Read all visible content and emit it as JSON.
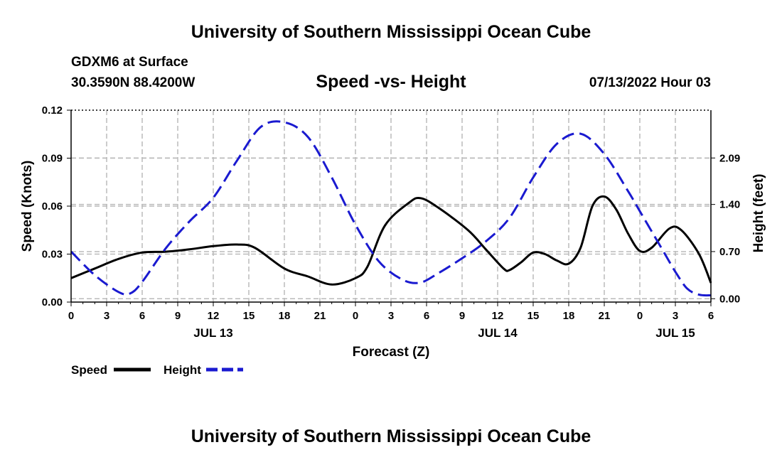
{
  "header": {
    "title": "University of Southern Mississippi Ocean Cube",
    "model": "GDXM6 at Surface",
    "coords": "30.3590N  88.4200W",
    "chart_title": "Speed -vs- Height",
    "date": "07/13/2022 Hour 03"
  },
  "footer": {
    "title": "University of Southern Mississippi Ocean Cube"
  },
  "legend": {
    "speed_label": "Speed",
    "height_label": "Height"
  },
  "colors": {
    "speed": "#000000",
    "height": "#1a1ad0",
    "grid": "#bbbbbb"
  },
  "chart_data": {
    "type": "line",
    "title": "Speed -vs- Height",
    "xlabel": "Forecast (Z)",
    "ylabel_left": "Speed (Knots)",
    "ylabel_right": "Height (feet)",
    "x_range_hours": [
      0,
      54
    ],
    "x_ticks": [
      {
        "h": 0,
        "label": "0"
      },
      {
        "h": 3,
        "label": "3"
      },
      {
        "h": 6,
        "label": "6"
      },
      {
        "h": 9,
        "label": "9"
      },
      {
        "h": 12,
        "label": "12"
      },
      {
        "h": 15,
        "label": "15"
      },
      {
        "h": 18,
        "label": "18"
      },
      {
        "h": 21,
        "label": "21"
      },
      {
        "h": 24,
        "label": "0"
      },
      {
        "h": 27,
        "label": "3"
      },
      {
        "h": 30,
        "label": "6"
      },
      {
        "h": 33,
        "label": "9"
      },
      {
        "h": 36,
        "label": "12"
      },
      {
        "h": 39,
        "label": "15"
      },
      {
        "h": 42,
        "label": "18"
      },
      {
        "h": 45,
        "label": "21"
      },
      {
        "h": 48,
        "label": "0"
      },
      {
        "h": 51,
        "label": "3"
      },
      {
        "h": 54,
        "label": "6"
      }
    ],
    "day_labels": [
      {
        "h": 12,
        "label": "JUL 13"
      },
      {
        "h": 36,
        "label": "JUL 14"
      },
      {
        "h": 51,
        "label": "JUL 15"
      }
    ],
    "y_left": {
      "min": 0.0,
      "max": 0.12,
      "ticks": [
        "0.00",
        "0.03",
        "0.06",
        "0.09",
        "0.12"
      ]
    },
    "y_right": {
      "min": -0.05,
      "max": 2.8,
      "ticks": [
        "0.00",
        "0.70",
        "1.40",
        "2.09"
      ]
    },
    "series": [
      {
        "name": "Speed",
        "axis": "left",
        "style": "solid",
        "points": [
          [
            0,
            0.015
          ],
          [
            2,
            0.021
          ],
          [
            4,
            0.027
          ],
          [
            6,
            0.031
          ],
          [
            8,
            0.0315
          ],
          [
            10,
            0.033
          ],
          [
            12,
            0.035
          ],
          [
            14,
            0.036
          ],
          [
            15.5,
            0.034
          ],
          [
            18,
            0.021
          ],
          [
            20,
            0.016
          ],
          [
            22,
            0.011
          ],
          [
            24,
            0.015
          ],
          [
            25,
            0.022
          ],
          [
            26.5,
            0.048
          ],
          [
            28.5,
            0.062
          ],
          [
            29.5,
            0.065
          ],
          [
            31,
            0.059
          ],
          [
            33.5,
            0.045
          ],
          [
            35,
            0.033
          ],
          [
            36.5,
            0.021
          ],
          [
            37,
            0.02
          ],
          [
            38,
            0.025
          ],
          [
            39,
            0.031
          ],
          [
            40,
            0.03
          ],
          [
            41,
            0.026
          ],
          [
            42,
            0.024
          ],
          [
            43,
            0.034
          ],
          [
            44,
            0.06
          ],
          [
            45,
            0.066
          ],
          [
            46,
            0.058
          ],
          [
            47,
            0.043
          ],
          [
            48,
            0.032
          ],
          [
            49,
            0.034
          ],
          [
            50.5,
            0.046
          ],
          [
            51.5,
            0.045
          ],
          [
            53,
            0.03
          ],
          [
            54,
            0.012
          ]
        ]
      },
      {
        "name": "Height",
        "axis": "right",
        "style": "dashed",
        "points": [
          [
            0,
            0.7
          ],
          [
            2,
            0.35
          ],
          [
            4,
            0.1
          ],
          [
            5,
            0.08
          ],
          [
            6,
            0.25
          ],
          [
            8,
            0.75
          ],
          [
            10,
            1.15
          ],
          [
            12,
            1.5
          ],
          [
            14,
            2.05
          ],
          [
            16,
            2.55
          ],
          [
            18,
            2.62
          ],
          [
            20,
            2.4
          ],
          [
            22,
            1.8
          ],
          [
            24,
            1.1
          ],
          [
            26,
            0.55
          ],
          [
            28,
            0.28
          ],
          [
            29.5,
            0.24
          ],
          [
            31,
            0.38
          ],
          [
            33,
            0.6
          ],
          [
            35,
            0.85
          ],
          [
            37,
            1.2
          ],
          [
            39,
            1.8
          ],
          [
            41,
            2.3
          ],
          [
            43,
            2.45
          ],
          [
            45,
            2.15
          ],
          [
            47,
            1.6
          ],
          [
            48,
            1.3
          ],
          [
            50,
            0.7
          ],
          [
            51,
            0.4
          ],
          [
            52,
            0.15
          ],
          [
            53,
            0.06
          ],
          [
            54,
            0.05
          ]
        ]
      }
    ]
  }
}
